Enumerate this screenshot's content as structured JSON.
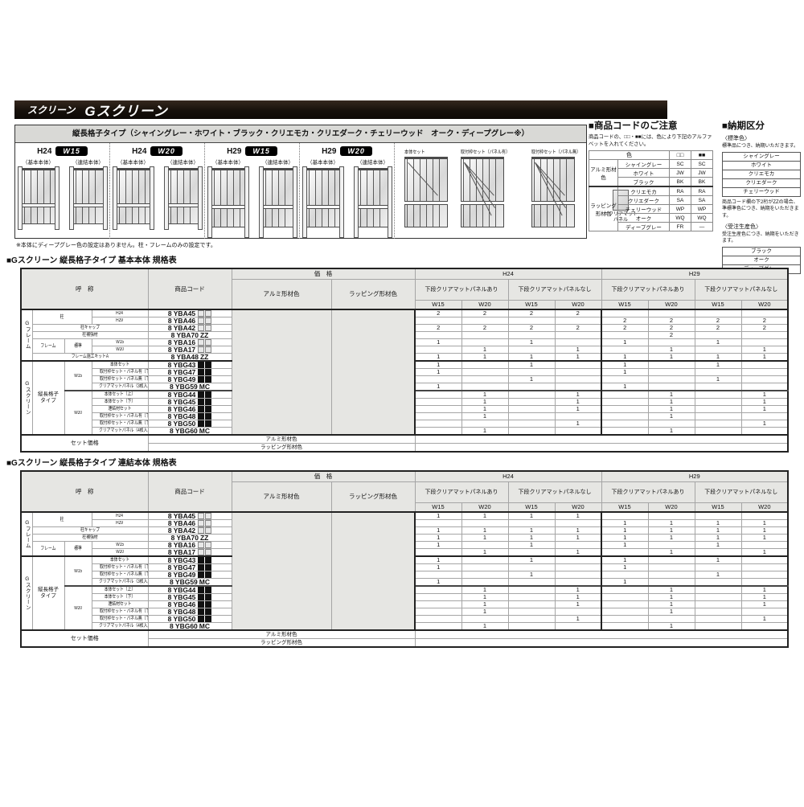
{
  "header": {
    "category": "スクリーン",
    "product": "Gスクリーン"
  },
  "diagram": {
    "title": "縦長格子タイプ（シャイングレー・ホワイト・ブラック・クリエモカ・クリエダーク・チェリーウッド　オーク・ディープグレー※）",
    "groups": [
      {
        "h": "H24",
        "w": "W15",
        "left_label": "（基本本体）",
        "right_label": "（連結本体）"
      },
      {
        "h": "H24",
        "w": "W20",
        "left_label": "（基本本体）",
        "right_label": "（連結本体）"
      },
      {
        "h": "H29",
        "w": "W15",
        "left_label": "（基本本体）",
        "right_label": "（連結本体）"
      },
      {
        "h": "H29",
        "w": "W20",
        "left_label": "（基本本体）",
        "right_label": "（連結本体）"
      }
    ],
    "legend": [
      {
        "label": "本体セット"
      },
      {
        "label": "取付枠セット（パネル有）"
      },
      {
        "label": "取付枠セット（パネル無）"
      }
    ],
    "panel_note": "＝クリアマットパネル",
    "footnote": "※本体にディープグレー色の設定はありません。柱・フレームのみの設定です。"
  },
  "code_notice": {
    "title": "■商品コードのご注意",
    "description": "商品コードの、□□・■■には、色により下記のアルファベットを入れてください。",
    "col_headers": [
      "色",
      "□□",
      "■■"
    ],
    "groups": [
      {
        "name": "アルミ形材色",
        "rows": [
          {
            "color": "シャイングレー",
            "c1": "SC",
            "c2": "SC"
          },
          {
            "color": "ホワイト",
            "c1": "JW",
            "c2": "JW"
          },
          {
            "color": "ブラック",
            "c1": "BK",
            "c2": "BK"
          }
        ]
      },
      {
        "name": "ラッピング形材色",
        "rows": [
          {
            "color": "クリエモカ",
            "c1": "RA",
            "c2": "RA"
          },
          {
            "color": "クリエダーク",
            "c1": "SA",
            "c2": "SA"
          },
          {
            "color": "チェリーウッド",
            "c1": "WP",
            "c2": "WP"
          },
          {
            "color": "オーク",
            "c1": "WQ",
            "c2": "WQ"
          },
          {
            "color": "ディープグレー",
            "c1": "FR",
            "c2": "—"
          }
        ]
      }
    ]
  },
  "delivery": {
    "title": "■納期区分",
    "standard_label": "〈標準色〉",
    "standard_note": "標準品につき、納期いただきます。",
    "standard_colors": [
      "シャイングレー",
      "ホワイト",
      "クリエモカ",
      "クリエダーク",
      "チェリーウッド"
    ],
    "zz_note": "商品コード欄の下2桁がZZの場合、準標準色につき、納期をいただきます。",
    "order_label": "〈受注生産色〉",
    "order_note": "受注生産色につき、納期をいただきます。",
    "order_colors": [
      "ブラック",
      "オーク",
      "ディープグレー"
    ]
  },
  "spec_header": {
    "name": "呼　称",
    "code": "商品コード",
    "price": "価　格",
    "alumi": "アルミ形材色",
    "wrap": "ラッピング形材色",
    "h24": "H24",
    "h29": "H29",
    "panel_yes": "下段クリアマットパネルあり",
    "panel_no": "下段クリアマットパネルなし",
    "w15": "W15",
    "w20": "W20",
    "set_price": "セット価格"
  },
  "spec_tables": [
    {
      "title": "■Gスクリーン 縦長格子タイプ 基本本体 規格表",
      "groups": [
        {
          "label": "Gフレーム",
          "rows": [
            {
              "cells": [
                {
                  "t": "柱",
                  "cs": 2,
                  "rs": 2
                },
                {
                  "t": "H24"
                }
              ],
              "code": "8 YBA45",
              "suffix": "□□",
              "q": [
                "2",
                "2",
                "2",
                "2",
                "",
                "",
                "",
                ""
              ]
            },
            {
              "cells": [
                {
                  "t": "H29"
                }
              ],
              "code": "8 YBA46",
              "suffix": "□□",
              "q": [
                "",
                "",
                "",
                "",
                "2",
                "2",
                "2",
                "2"
              ]
            },
            {
              "cells": [
                {
                  "t": "柱キャップ",
                  "cs": 3
                }
              ],
              "code": "8 YBA42",
              "suffix": "□□",
              "q": [
                "2",
                "2",
                "2",
                "2",
                "2",
                "2",
                "2",
                "2"
              ]
            },
            {
              "cells": [
                {
                  "t": "柱補強材",
                  "cs": 3
                }
              ],
              "code": "8 YBA70",
              "suffix": "ZZ",
              "q": [
                "",
                "",
                "",
                "",
                "",
                "2",
                "",
                ""
              ]
            },
            {
              "cells": [
                {
                  "t": "フレーム",
                  "rs": 2
                },
                {
                  "t": "標準",
                  "rs": 2
                },
                {
                  "t": "W15"
                }
              ],
              "code": "8 YBA16",
              "suffix": "□□",
              "q": [
                "1",
                "",
                "1",
                "",
                "1",
                "",
                "1",
                ""
              ]
            },
            {
              "cells": [
                {
                  "t": "W20"
                }
              ],
              "code": "8 YBA17",
              "suffix": "□□",
              "q": [
                "",
                "1",
                "",
                "1",
                "",
                "1",
                "",
                "1"
              ]
            },
            {
              "cells": [
                {
                  "t": "フレーム施工キットA",
                  "cs": 3
                }
              ],
              "code": "8 YBA48",
              "suffix": "ZZ",
              "q": [
                "1",
                "1",
                "1",
                "1",
                "1",
                "1",
                "1",
                "1"
              ]
            }
          ]
        },
        {
          "label": "Gスクリーン",
          "rows": [
            {
              "cells": [
                {
                  "t": "縦長格子タイプ",
                  "rs": 10,
                  "wrap": true
                },
                {
                  "t": "W15",
                  "rs": 4
                },
                {
                  "t": "本体セット"
                }
              ],
              "code": "8 YBG43",
              "suffix": "■■",
              "q": [
                "1",
                "",
                "1",
                "",
                "1",
                "",
                "1",
                ""
              ]
            },
            {
              "cells": [
                {
                  "t": "取付枠セット・パネル有〔下段〕"
                }
              ],
              "code": "8 YBG47",
              "suffix": "■■",
              "q": [
                "1",
                "",
                "",
                "",
                "1",
                "",
                "",
                ""
              ]
            },
            {
              "cells": [
                {
                  "t": "取付枠セット・パネル無〔下段〕"
                }
              ],
              "code": "8 YBG49",
              "suffix": "■■",
              "q": [
                "",
                "",
                "1",
                "",
                "",
                "",
                "1",
                ""
              ]
            },
            {
              "cells": [
                {
                  "t": "クリアマットパネル（3枚入）"
                }
              ],
              "code": "8 YBG59",
              "suffix": "MC",
              "q": [
                "1",
                "",
                "",
                "",
                "1",
                "",
                "",
                ""
              ]
            },
            {
              "sep": true,
              "cells": [
                {
                  "t": "W20",
                  "rs": 6
                },
                {
                  "t": "本体セット（上）"
                }
              ],
              "code": "8 YBG44",
              "suffix": "■■",
              "q": [
                "",
                "1",
                "",
                "1",
                "",
                "1",
                "",
                "1"
              ]
            },
            {
              "cells": [
                {
                  "t": "本体セット（下）"
                }
              ],
              "code": "8 YBG45",
              "suffix": "■■",
              "q": [
                "",
                "1",
                "",
                "1",
                "",
                "1",
                "",
                "1"
              ]
            },
            {
              "cells": [
                {
                  "t": "連結材セット"
                }
              ],
              "code": "8 YBG46",
              "suffix": "■■",
              "q": [
                "",
                "1",
                "",
                "1",
                "",
                "1",
                "",
                "1"
              ]
            },
            {
              "cells": [
                {
                  "t": "取付枠セット・パネル有〔下段〕"
                }
              ],
              "code": "8 YBG48",
              "suffix": "■■",
              "q": [
                "",
                "1",
                "",
                "",
                "",
                "1",
                "",
                ""
              ]
            },
            {
              "cells": [
                {
                  "t": "取付枠セット・パネル無〔下段〕"
                }
              ],
              "code": "8 YBG50",
              "suffix": "■■",
              "q": [
                "",
                "",
                "",
                "1",
                "",
                "",
                "",
                "1"
              ]
            },
            {
              "cells": [
                {
                  "t": "クリアマットパネル（4枚入）"
                }
              ],
              "code": "8 YBG60",
              "suffix": "MC",
              "q": [
                "",
                "1",
                "",
                "",
                "",
                "1",
                "",
                ""
              ]
            }
          ]
        }
      ]
    },
    {
      "title": "■Gスクリーン 縦長格子タイプ 連結本体 規格表",
      "groups": [
        {
          "label": "Gフレーム",
          "rows": [
            {
              "cells": [
                {
                  "t": "柱",
                  "cs": 2,
                  "rs": 2
                },
                {
                  "t": "H24"
                }
              ],
              "code": "8 YBA45",
              "suffix": "□□",
              "q": [
                "1",
                "1",
                "1",
                "1",
                "",
                "",
                "",
                ""
              ]
            },
            {
              "cells": [
                {
                  "t": "H29"
                }
              ],
              "code": "8 YBA46",
              "suffix": "□□",
              "q": [
                "",
                "",
                "",
                "",
                "1",
                "1",
                "1",
                "1"
              ]
            },
            {
              "cells": [
                {
                  "t": "柱キャップ",
                  "cs": 3
                }
              ],
              "code": "8 YBA42",
              "suffix": "□□",
              "q": [
                "1",
                "1",
                "1",
                "1",
                "1",
                "1",
                "1",
                "1"
              ]
            },
            {
              "cells": [
                {
                  "t": "柱補強材",
                  "cs": 3
                }
              ],
              "code": "8 YBA70",
              "suffix": "ZZ",
              "q": [
                "1",
                "1",
                "1",
                "1",
                "1",
                "1",
                "1",
                "1"
              ]
            },
            {
              "cells": [
                {
                  "t": "フレーム",
                  "rs": 2
                },
                {
                  "t": "標準",
                  "rs": 2
                },
                {
                  "t": "W15"
                }
              ],
              "code": "8 YBA16",
              "suffix": "□□",
              "q": [
                "1",
                "",
                "1",
                "",
                "1",
                "",
                "1",
                ""
              ]
            },
            {
              "cells": [
                {
                  "t": "W20"
                }
              ],
              "code": "8 YBA17",
              "suffix": "□□",
              "q": [
                "",
                "1",
                "",
                "1",
                "",
                "1",
                "",
                "1"
              ]
            }
          ]
        },
        {
          "label": "Gスクリーン",
          "rows": [
            {
              "cells": [
                {
                  "t": "縦長格子タイプ",
                  "rs": 10,
                  "wrap": true
                },
                {
                  "t": "W15",
                  "rs": 4
                },
                {
                  "t": "本体セット"
                }
              ],
              "code": "8 YBG43",
              "suffix": "■■",
              "q": [
                "1",
                "",
                "1",
                "",
                "1",
                "",
                "1",
                ""
              ]
            },
            {
              "cells": [
                {
                  "t": "取付枠セット・パネル有〔下段〕"
                }
              ],
              "code": "8 YBG47",
              "suffix": "■■",
              "q": [
                "1",
                "",
                "",
                "",
                "1",
                "",
                "",
                ""
              ]
            },
            {
              "cells": [
                {
                  "t": "取付枠セット・パネル無〔下段〕"
                }
              ],
              "code": "8 YBG49",
              "suffix": "■■",
              "q": [
                "",
                "",
                "1",
                "",
                "",
                "",
                "1",
                ""
              ]
            },
            {
              "cells": [
                {
                  "t": "クリアマットパネル（3枚入）"
                }
              ],
              "code": "8 YBG59",
              "suffix": "MC",
              "q": [
                "1",
                "",
                "",
                "",
                "1",
                "",
                "",
                ""
              ]
            },
            {
              "sep": true,
              "cells": [
                {
                  "t": "W20",
                  "rs": 6
                },
                {
                  "t": "本体セット（上）"
                }
              ],
              "code": "8 YBG44",
              "suffix": "■■",
              "q": [
                "",
                "1",
                "",
                "1",
                "",
                "1",
                "",
                "1"
              ]
            },
            {
              "cells": [
                {
                  "t": "本体セット（下）"
                }
              ],
              "code": "8 YBG45",
              "suffix": "■■",
              "q": [
                "",
                "1",
                "",
                "1",
                "",
                "1",
                "",
                "1"
              ]
            },
            {
              "cells": [
                {
                  "t": "連結材セット"
                }
              ],
              "code": "8 YBG46",
              "suffix": "■■",
              "q": [
                "",
                "1",
                "",
                "1",
                "",
                "1",
                "",
                "1"
              ]
            },
            {
              "cells": [
                {
                  "t": "取付枠セット・パネル有〔下段〕"
                }
              ],
              "code": "8 YBG48",
              "suffix": "■■",
              "q": [
                "",
                "1",
                "",
                "",
                "",
                "1",
                "",
                ""
              ]
            },
            {
              "cells": [
                {
                  "t": "取付枠セット・パネル無〔下段〕"
                }
              ],
              "code": "8 YBG50",
              "suffix": "■■",
              "q": [
                "",
                "",
                "",
                "1",
                "",
                "",
                "",
                "1"
              ]
            },
            {
              "cells": [
                {
                  "t": "クリアマットパネル（4枚入）"
                }
              ],
              "code": "8 YBG60",
              "suffix": "MC",
              "q": [
                "",
                "1",
                "",
                "",
                "",
                "1",
                "",
                ""
              ]
            }
          ]
        }
      ]
    }
  ]
}
